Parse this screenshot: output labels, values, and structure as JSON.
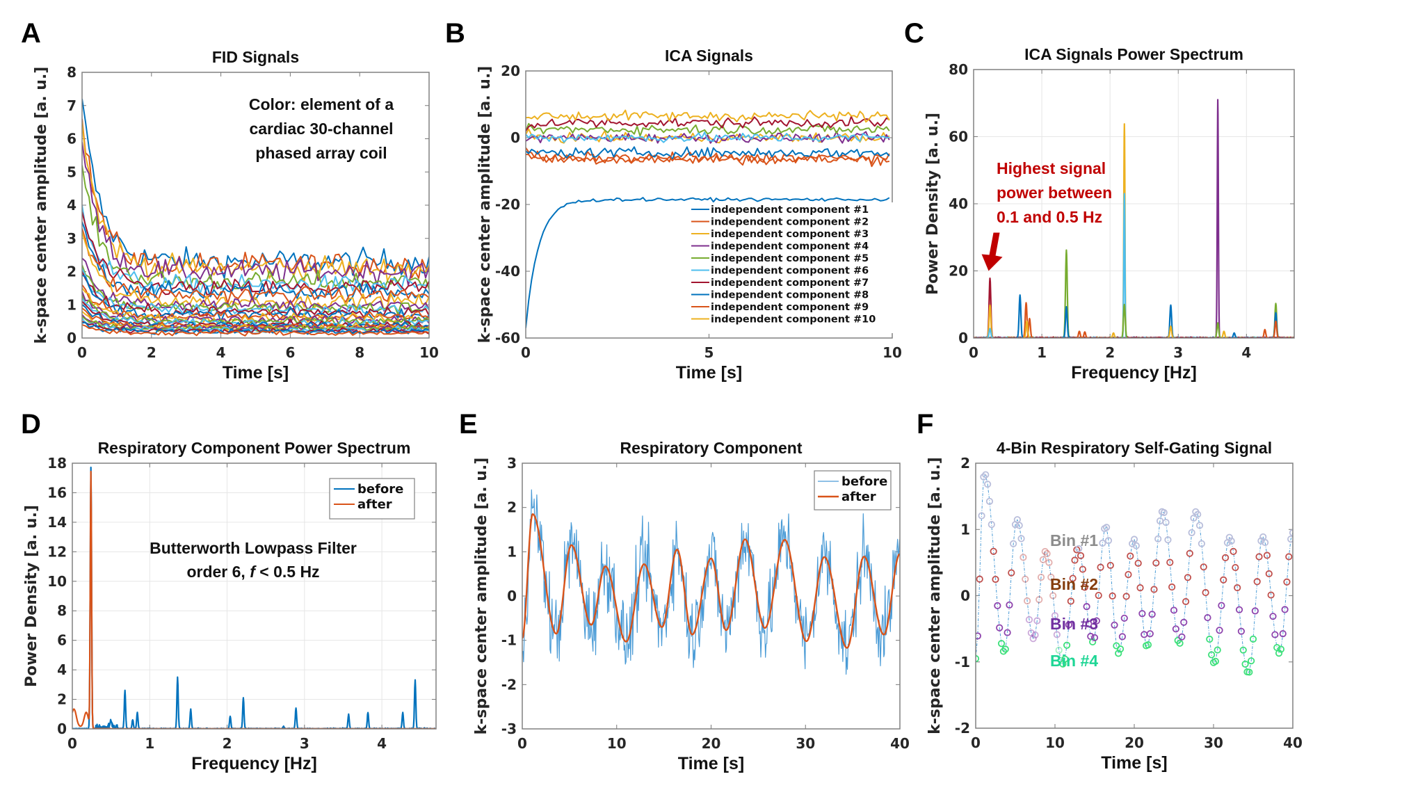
{
  "panel_letters": [
    "A",
    "B",
    "C",
    "D",
    "E",
    "F"
  ],
  "chart_data": [
    {
      "id": "A",
      "type": "line",
      "title": "FID Signals",
      "xlabel": "Time [s]",
      "ylabel": "k-space center amplitude [a. u.]",
      "xlim": [
        0,
        10
      ],
      "ylim": [
        0,
        8
      ],
      "xticks": [
        0,
        2,
        4,
        6,
        8,
        10
      ],
      "yticks": [
        0,
        1,
        2,
        3,
        4,
        5,
        6,
        7,
        8
      ],
      "grid": false,
      "annotation": [
        "Color: element of a",
        "cardiac 30-channel",
        "phased array coil"
      ],
      "n_series": 30,
      "series_summary": {
        "initial_values": [
          7.2,
          6.6,
          6.5,
          5.9,
          5.2,
          4.0,
          3.8,
          3.5,
          3.3,
          3.2,
          2.4,
          2.2,
          2.1,
          2.0,
          1.9,
          1.6,
          1.5,
          1.4,
          1.3,
          1.2,
          1.1,
          1.0,
          0.9,
          0.8,
          0.7,
          0.65,
          0.6,
          0.5,
          0.45,
          0.4
        ],
        "steady_state_levels": [
          2.3,
          2.2,
          2.1,
          2.0,
          1.7,
          1.6,
          1.5,
          1.4,
          1.3,
          1.1,
          1.0,
          0.9,
          0.85,
          0.8,
          0.7,
          0.65,
          0.6,
          0.55,
          0.5,
          0.45,
          0.4,
          0.38,
          0.35,
          0.32,
          0.3,
          0.28,
          0.25,
          0.22,
          0.2,
          0.15
        ],
        "decay_time_s": 0.5
      }
    },
    {
      "id": "B",
      "type": "line",
      "title": "ICA Signals",
      "xlabel": "Time [s]",
      "ylabel": "k-space center amplitude [a. u.]",
      "xlim": [
        0,
        10
      ],
      "ylim": [
        -60,
        20
      ],
      "xticks": [
        0,
        5,
        10
      ],
      "yticks": [
        -60,
        -40,
        -20,
        0,
        20
      ],
      "grid": false,
      "legend_position": "bottom-right",
      "series": [
        {
          "name": "independent component #1",
          "color": "#0072BD",
          "start": -57,
          "level": -18.5
        },
        {
          "name": "independent component #2",
          "color": "#D95319",
          "start": -3,
          "level": -6
        },
        {
          "name": "independent component #3",
          "color": "#EDB120",
          "start": 1,
          "level": 0
        },
        {
          "name": "independent component #4",
          "color": "#7E2F8E",
          "start": -1,
          "level": 0
        },
        {
          "name": "independent component #5",
          "color": "#77AC30",
          "start": 2,
          "level": 2.5
        },
        {
          "name": "independent component #6",
          "color": "#4DBEEE",
          "start": 1,
          "level": 0
        },
        {
          "name": "independent component #7",
          "color": "#A2142F",
          "start": 2,
          "level": 4.5
        },
        {
          "name": "independent component #8",
          "color": "#0072BD",
          "start": -4,
          "level": -4.5
        },
        {
          "name": "independent component #9",
          "color": "#D95319",
          "start": -5,
          "level": -6.5
        },
        {
          "name": "independent component #10",
          "color": "#EDB120",
          "start": 6,
          "level": 6.5
        }
      ]
    },
    {
      "id": "C",
      "type": "line",
      "title": "ICA Signals Power Spectrum",
      "xlabel": "Frequency [Hz]",
      "ylabel": "Power Density [a. u.]",
      "xlim": [
        0,
        4.7
      ],
      "ylim": [
        0,
        80
      ],
      "xticks": [
        0,
        1,
        2,
        3,
        4
      ],
      "yticks": [
        0,
        20,
        40,
        60,
        80
      ],
      "grid": true,
      "annotation": [
        "Highest signal",
        "power between",
        "0.1 and 0.5 Hz"
      ],
      "annotation_color": "#C00000",
      "arrow_target": {
        "x": 0.24,
        "y": 20
      },
      "peaks": [
        {
          "x": 0.24,
          "height": 17.8,
          "color": "#A2142F"
        },
        {
          "x": 0.24,
          "height": 9.8,
          "color": "#EDB120"
        },
        {
          "x": 0.24,
          "height": 2.8,
          "color": "#4DBEEE"
        },
        {
          "x": 0.68,
          "height": 12.8,
          "color": "#0072BD"
        },
        {
          "x": 0.77,
          "height": 10.5,
          "color": "#D95319"
        },
        {
          "x": 0.82,
          "height": 5.8,
          "color": "#D95319"
        },
        {
          "x": 0.78,
          "height": 5.0,
          "color": "#EDB120"
        },
        {
          "x": 1.36,
          "height": 26.2,
          "color": "#77AC30"
        },
        {
          "x": 1.36,
          "height": 9.3,
          "color": "#0072BD"
        },
        {
          "x": 1.55,
          "height": 2.0,
          "color": "#D95319"
        },
        {
          "x": 1.63,
          "height": 1.8,
          "color": "#D95319"
        },
        {
          "x": 2.05,
          "height": 1.5,
          "color": "#EDB120"
        },
        {
          "x": 2.21,
          "height": 63.8,
          "color": "#EDB120"
        },
        {
          "x": 2.21,
          "height": 43.0,
          "color": "#4DBEEE"
        },
        {
          "x": 2.21,
          "height": 10.0,
          "color": "#77AC30"
        },
        {
          "x": 2.89,
          "height": 9.8,
          "color": "#0072BD"
        },
        {
          "x": 2.89,
          "height": 3.5,
          "color": "#EDB120"
        },
        {
          "x": 3.58,
          "height": 71.0,
          "color": "#7E2F8E"
        },
        {
          "x": 3.58,
          "height": 4.5,
          "color": "#77AC30"
        },
        {
          "x": 3.67,
          "height": 2.0,
          "color": "#EDB120"
        },
        {
          "x": 3.82,
          "height": 1.5,
          "color": "#0072BD"
        },
        {
          "x": 4.27,
          "height": 2.5,
          "color": "#D95319"
        },
        {
          "x": 4.43,
          "height": 10.3,
          "color": "#77AC30"
        },
        {
          "x": 4.43,
          "height": 7.5,
          "color": "#0072BD"
        },
        {
          "x": 4.43,
          "height": 5.0,
          "color": "#D95319"
        }
      ]
    },
    {
      "id": "D",
      "type": "line",
      "title": "Respiratory Component Power Spectrum",
      "xlabel": "Frequency [Hz]",
      "ylabel": "Power Density [a. u.]",
      "xlim": [
        0,
        4.7
      ],
      "ylim": [
        0,
        18
      ],
      "xticks": [
        0,
        1,
        2,
        3,
        4
      ],
      "yticks": [
        0,
        2,
        4,
        6,
        8,
        10,
        12,
        14,
        16,
        18
      ],
      "grid": true,
      "legend_position": "top-right",
      "annotation": [
        "Butterworth Lowpass Filter",
        "order 6, ",
        "f",
        " < 0.5 Hz"
      ],
      "series": [
        {
          "name": "before",
          "color": "#0072BD",
          "peaks": [
            [
              0.24,
              17.7
            ],
            [
              0.5,
              0.5
            ],
            [
              0.68,
              2.6
            ],
            [
              0.78,
              0.6
            ],
            [
              0.84,
              1.1
            ],
            [
              1.36,
              3.5
            ],
            [
              1.53,
              1.3
            ],
            [
              2.04,
              0.85
            ],
            [
              2.21,
              2.1
            ],
            [
              2.73,
              0.15
            ],
            [
              2.89,
              1.4
            ],
            [
              3.57,
              0.95
            ],
            [
              3.82,
              1.1
            ],
            [
              4.27,
              1.1
            ],
            [
              4.43,
              3.3
            ]
          ]
        },
        {
          "name": "after",
          "color": "#D95319",
          "peaks": [
            [
              0.0,
              0.55
            ],
            [
              0.03,
              0.95
            ],
            [
              0.1,
              0.1
            ],
            [
              0.18,
              1.1
            ],
            [
              0.24,
              17.3
            ]
          ]
        }
      ]
    },
    {
      "id": "E",
      "type": "line",
      "title": "Respiratory Component",
      "xlabel": "Time [s]",
      "ylabel": "k-space center amplitude [a. u.]",
      "xlim": [
        0,
        40
      ],
      "ylim": [
        -3,
        3
      ],
      "xticks": [
        0,
        10,
        20,
        30,
        40
      ],
      "yticks": [
        -3,
        -2,
        -1,
        0,
        1,
        2,
        3
      ],
      "grid": false,
      "legend_position": "top-right",
      "series": [
        {
          "name": "before",
          "color": "#4A9BD6"
        },
        {
          "name": "after",
          "color": "#D95319",
          "extrema": [
            [
              0,
              -0.95
            ],
            [
              1.1,
              1.85
            ],
            [
              3.6,
              -0.85
            ],
            [
              5.2,
              1.15
            ],
            [
              7.3,
              -0.65
            ],
            [
              8.8,
              0.67
            ],
            [
              11.0,
              -1.03
            ],
            [
              12.9,
              0.72
            ],
            [
              14.8,
              -0.7
            ],
            [
              16.4,
              1.05
            ],
            [
              18.0,
              -0.87
            ],
            [
              20.0,
              0.85
            ],
            [
              21.6,
              -0.77
            ],
            [
              23.6,
              1.28
            ],
            [
              25.7,
              -0.72
            ],
            [
              27.8,
              1.27
            ],
            [
              30.1,
              -1.02
            ],
            [
              32.0,
              0.88
            ],
            [
              34.4,
              -1.17
            ],
            [
              36.2,
              0.89
            ],
            [
              38.3,
              -0.87
            ],
            [
              40,
              0.95
            ]
          ]
        }
      ]
    },
    {
      "id": "F",
      "type": "scatter",
      "title": "4-Bin Respiratory Self-Gating Signal",
      "xlabel": "Time [s]",
      "ylabel": "k-space center amplitude [a. u.]",
      "xlim": [
        0,
        40
      ],
      "ylim": [
        -2,
        2
      ],
      "xticks": [
        0,
        10,
        20,
        30,
        40
      ],
      "yticks": [
        -2,
        -1,
        0,
        1,
        2
      ],
      "grid": false,
      "bins": [
        {
          "name": "Bin #1",
          "label_color": "#8C8C8C",
          "marker_color": "#B9BEDB",
          "range": [
            0.7,
            2.0
          ]
        },
        {
          "name": "Bin #2",
          "label_color": "#843C0C",
          "marker_color": "#C0504D",
          "range": [
            -0.1,
            0.7
          ]
        },
        {
          "name": "Bin #3",
          "label_color": "#7030A0",
          "marker_color": "#8E44AD",
          "range": [
            -0.65,
            -0.1
          ]
        },
        {
          "name": "Bin #4",
          "label_color": "#1ED695",
          "marker_color": "#3DE07A",
          "range": [
            -2.0,
            -0.65
          ]
        }
      ],
      "connector_color": "#4A9BD6"
    }
  ]
}
